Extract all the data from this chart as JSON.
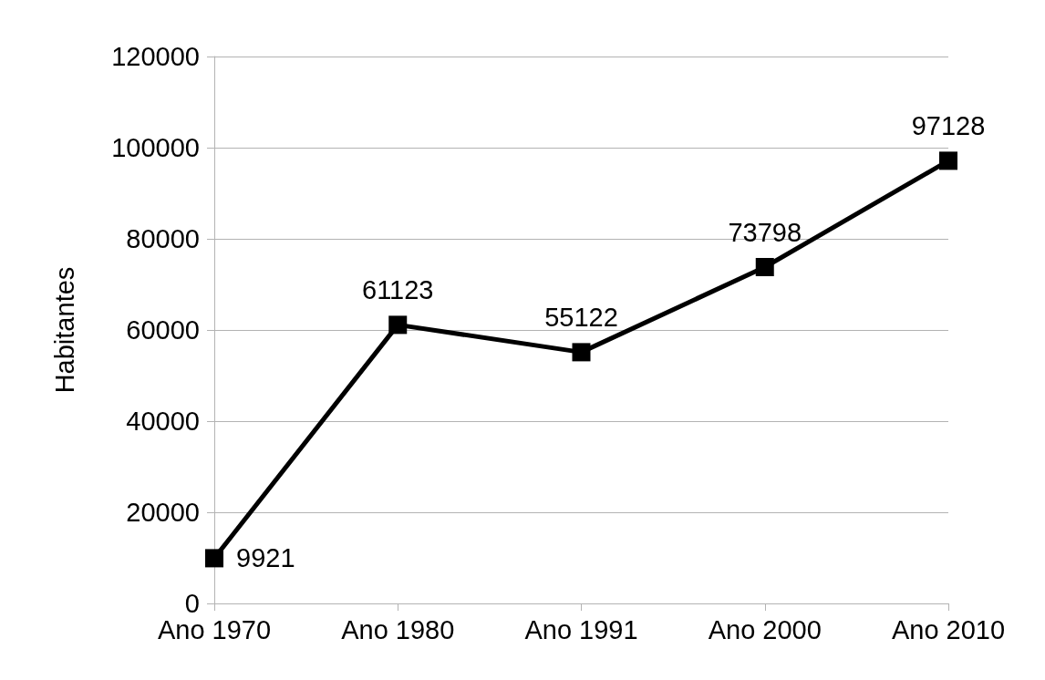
{
  "chart_data": {
    "type": "line",
    "ylabel": "Habitantes",
    "categories": [
      "Ano 1970",
      "Ano 1980",
      "Ano 1991",
      "Ano 2000",
      "Ano 2010"
    ],
    "series": [
      {
        "color": "#000000",
        "values": [
          9921,
          61123,
          55122,
          73798,
          97128
        ]
      }
    ],
    "ylim": [
      0,
      120000
    ],
    "yticks": [
      0,
      20000,
      40000,
      60000,
      80000,
      100000,
      120000
    ],
    "grid": "y",
    "marker": "square",
    "line_style": "solid",
    "data_labels": true
  }
}
